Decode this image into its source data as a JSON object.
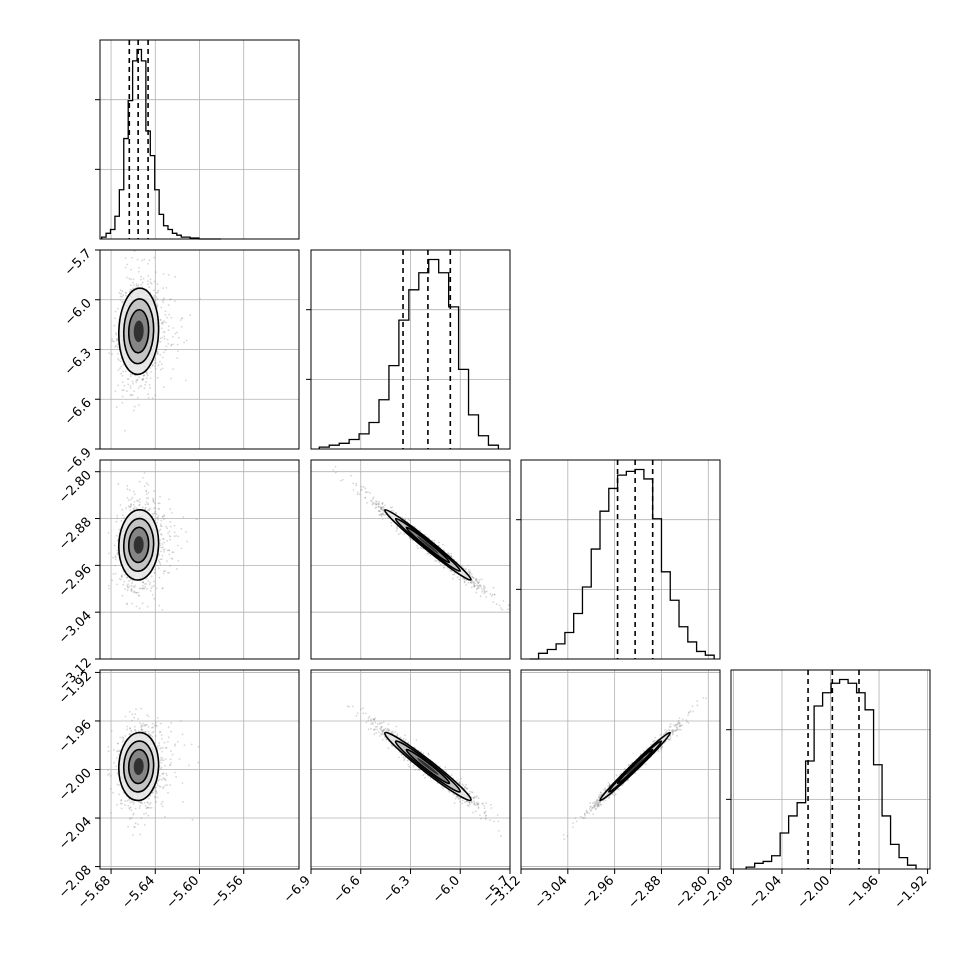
{
  "chart_data": {
    "type": "corner",
    "parameters": [
      {
        "xlim": [
          -5.69,
          -5.51
        ],
        "ticks": [
          -5.68,
          -5.64,
          -5.6,
          -5.56
        ],
        "tick_labels": [
          "−5.68",
          "−5.64",
          "−5.60",
          "−5.56"
        ]
      },
      {
        "xlim": [
          -6.9,
          -5.7
        ],
        "ticks": [
          -6.9,
          -6.6,
          -6.3,
          -6.0,
          -5.7
        ],
        "tick_labels": [
          "−6.9",
          "−6.6",
          "−6.3",
          "−6.0",
          "−5.7"
        ]
      },
      {
        "xlim": [
          -3.12,
          -2.78
        ],
        "ticks": [
          -3.12,
          -3.04,
          -2.96,
          -2.88,
          -2.8
        ],
        "tick_labels": [
          "−3.12",
          "−3.04",
          "−2.96",
          "−2.88",
          "−2.80"
        ]
      },
      {
        "xlim": [
          -2.082,
          -1.918
        ],
        "ticks": [
          -2.08,
          -2.04,
          -2.0,
          -1.96,
          -1.92
        ],
        "tick_labels": [
          "−2.08",
          "−2.04",
          "−2.00",
          "−1.96",
          "−1.92"
        ]
      }
    ],
    "histograms": [
      {
        "bins": [
          -5.6885,
          -5.6845,
          -5.6805,
          -5.6765,
          -5.6725,
          -5.6685,
          -5.6645,
          -5.6605,
          -5.6565,
          -5.6525,
          -5.6485,
          -5.6445,
          -5.6405,
          -5.6365,
          -5.6325,
          -5.6285,
          -5.6245,
          -5.6205,
          -5.6165,
          -5.6125,
          -5.6085,
          -5.6045,
          -5.6005,
          -5.5965,
          -5.5925,
          -5.5885,
          -5.5845,
          -5.5805
        ],
        "counts": [
          0.01,
          0.03,
          0.05,
          0.12,
          0.26,
          0.53,
          0.73,
          0.94,
          1.0,
          0.94,
          0.57,
          0.44,
          0.26,
          0.13,
          0.07,
          0.05,
          0.03,
          0.02,
          0.01,
          0.01,
          0.005,
          0.005,
          0,
          0,
          0,
          0,
          0
        ],
        "quantiles": [
          -5.6635,
          -5.6555,
          -5.6465
        ]
      },
      {
        "bins": [
          -6.85,
          -6.79,
          -6.73,
          -6.67,
          -6.61,
          -6.55,
          -6.49,
          -6.43,
          -6.37,
          -6.31,
          -6.25,
          -6.19,
          -6.13,
          -6.07,
          -6.01,
          -5.95,
          -5.89,
          -5.83,
          -5.77
        ],
        "counts": [
          0.01,
          0.02,
          0.03,
          0.05,
          0.08,
          0.14,
          0.26,
          0.44,
          0.68,
          0.84,
          0.93,
          1.0,
          0.93,
          0.75,
          0.42,
          0.18,
          0.07,
          0.02
        ],
        "quantiles": [
          -6.345,
          -6.195,
          -6.06
        ]
      },
      {
        "bins": [
          -3.105,
          -3.09,
          -3.075,
          -3.06,
          -3.045,
          -3.03,
          -3.015,
          -3.0,
          -2.985,
          -2.97,
          -2.955,
          -2.94,
          -2.925,
          -2.91,
          -2.895,
          -2.88,
          -2.865,
          -2.85,
          -2.835,
          -2.82,
          -2.805,
          -2.79
        ],
        "counts": [
          0,
          0.03,
          0.05,
          0.08,
          0.14,
          0.24,
          0.38,
          0.58,
          0.78,
          0.9,
          0.97,
          0.99,
          1.0,
          0.95,
          0.74,
          0.46,
          0.31,
          0.17,
          0.09,
          0.04,
          0.02
        ],
        "quantiles": [
          -2.955,
          -2.925,
          -2.895
        ]
      },
      {
        "bins": [
          -2.0695,
          -2.0625,
          -2.0555,
          -2.0485,
          -2.0415,
          -2.0345,
          -2.0275,
          -2.0205,
          -2.0135,
          -2.0065,
          -1.9995,
          -1.9925,
          -1.9855,
          -1.9785,
          -1.9715,
          -1.9645,
          -1.9575,
          -1.9505,
          -1.9435,
          -1.9365,
          -1.9295
        ],
        "counts": [
          0.01,
          0.03,
          0.04,
          0.07,
          0.19,
          0.28,
          0.35,
          0.57,
          0.86,
          0.93,
          0.98,
          1.0,
          0.98,
          0.93,
          0.84,
          0.55,
          0.28,
          0.13,
          0.06,
          0.02
        ],
        "quantiles": [
          -2.0185,
          -1.9985,
          -1.9765
        ]
      }
    ],
    "pairs": [
      {
        "xi": 0,
        "yi": 1,
        "mean": [
          -5.655,
          -6.19
        ],
        "sd": [
          0.009,
          0.13
        ],
        "rho": 0.06
      },
      {
        "xi": 0,
        "yi": 2,
        "mean": [
          -5.655,
          -2.925
        ],
        "sd": [
          0.009,
          0.03
        ],
        "rho": 0.05
      },
      {
        "xi": 1,
        "yi": 2,
        "mean": [
          -6.195,
          -2.925
        ],
        "sd": [
          0.13,
          0.03
        ],
        "rho": -0.985
      },
      {
        "xi": 0,
        "yi": 3,
        "mean": [
          -5.655,
          -1.9975
        ],
        "sd": [
          0.009,
          0.014
        ],
        "rho": 0.05
      },
      {
        "xi": 1,
        "yi": 3,
        "mean": [
          -6.195,
          -1.9975
        ],
        "sd": [
          0.13,
          0.014
        ],
        "rho": -0.975
      },
      {
        "xi": 2,
        "yi": 3,
        "mean": [
          -2.925,
          -1.9975
        ],
        "sd": [
          0.03,
          0.014
        ],
        "rho": 0.99
      }
    ],
    "contour_levels_sigma": [
      0.5,
      1.0,
      1.5,
      2.0
    ],
    "colors": {
      "ink": "#000000",
      "grid": "#b0b0b0",
      "points": "#8c8c8c"
    },
    "grid": true
  }
}
